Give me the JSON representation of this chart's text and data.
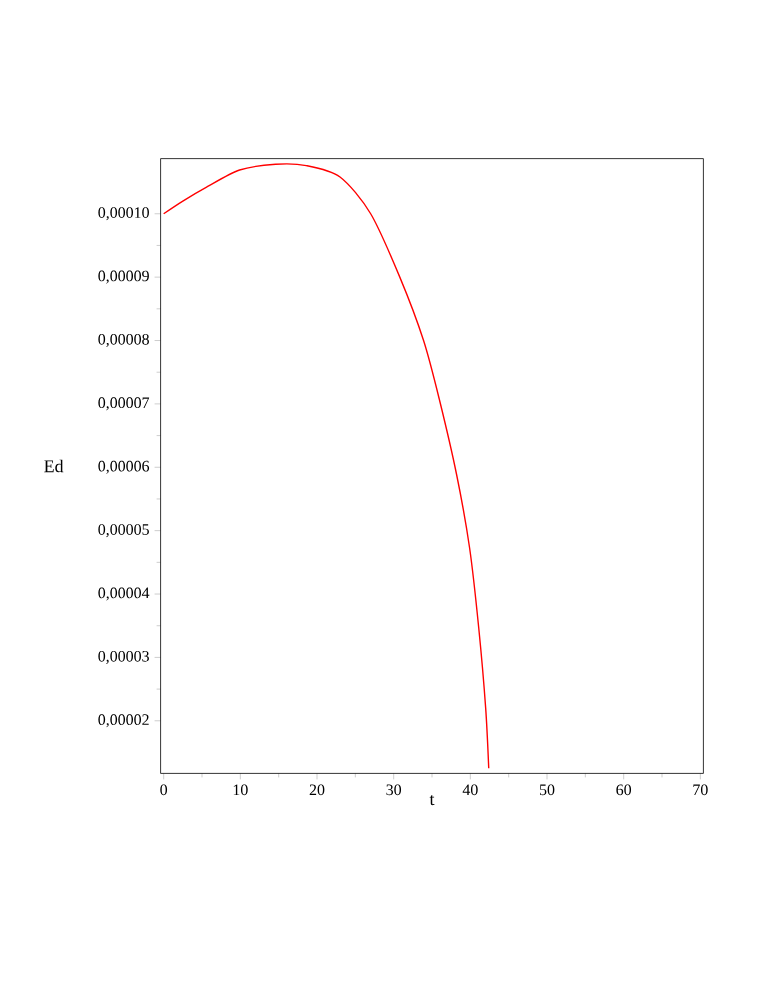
{
  "chart_data": {
    "type": "line",
    "xlabel": "t",
    "ylabel": "Ed",
    "x": [
      0,
      2.5,
      5.6,
      9.9,
      14.6,
      18.6,
      23.0,
      27.0,
      30.8,
      33.9,
      36.0,
      38.2,
      39.9,
      41.1,
      42.0,
      42.4
    ],
    "series": [
      {
        "color": "#ff0000",
        "values": [
          0.0001,
          0.000102,
          0.0001042,
          0.0001069,
          0.0001078,
          0.0001076,
          0.0001058,
          0.0001,
          9e-05,
          8e-05,
          7.05e-05,
          5.89e-05,
          4.73e-05,
          3.46e-05,
          2.2e-05,
          1.25e-05
        ]
      }
    ],
    "xlim": [
      -0.4,
      70.4
    ],
    "ylim": [
      1.17e-05,
      0.0001087
    ],
    "xticks": [
      0,
      10,
      20,
      30,
      40,
      50,
      60,
      70
    ],
    "yticks": [
      {
        "value": 2e-05,
        "label": "0,00002"
      },
      {
        "value": 3e-05,
        "label": "0,00003"
      },
      {
        "value": 4e-05,
        "label": "0,00004"
      },
      {
        "value": 5e-05,
        "label": "0,00005"
      },
      {
        "value": 6e-05,
        "label": "0,00006"
      },
      {
        "value": 7e-05,
        "label": "0,00007"
      },
      {
        "value": 8e-05,
        "label": "0,00008"
      },
      {
        "value": 9e-05,
        "label": "0,00009"
      },
      {
        "value": 0.0001,
        "label": "0,00010"
      }
    ],
    "grid": false,
    "marker": "none",
    "line_style": "solid"
  }
}
